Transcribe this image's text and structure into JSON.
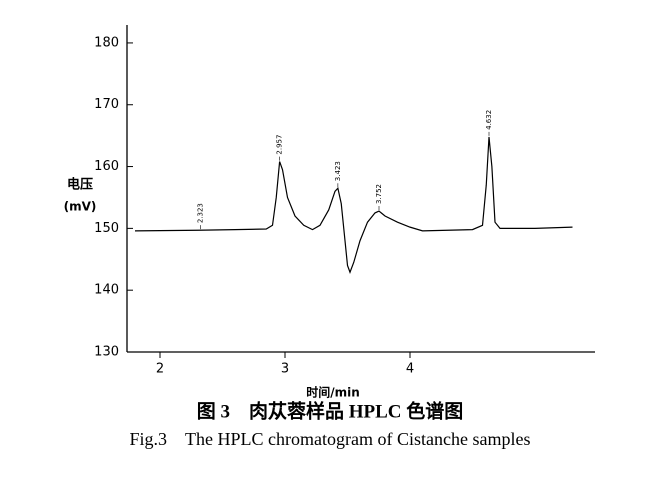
{
  "chart_data": {
    "type": "line",
    "ylabel": [
      "电压",
      "(mV)"
    ],
    "xlabel": "时间/min",
    "caption": "图 3　肉苁蓉样品 HPLC 色谱图",
    "caption_en": "Fig.3　The HPLC chromatogram of Cistanche samples",
    "x": [
      1.8,
      2.3,
      2.6,
      2.85,
      2.9,
      2.93,
      2.957,
      2.98,
      3.02,
      3.08,
      3.15,
      3.22,
      3.28,
      3.35,
      3.4,
      3.423,
      3.45,
      3.48,
      3.5,
      3.52,
      3.55,
      3.6,
      3.66,
      3.72,
      3.752,
      3.8,
      3.9,
      4.0,
      4.1,
      4.3,
      4.5,
      4.58,
      4.61,
      4.632,
      4.655,
      4.68,
      4.72,
      5.0,
      5.3
    ],
    "series": [
      {
        "color": "#000000",
        "values": [
          149.6,
          149.7,
          149.8,
          149.9,
          150.5,
          155,
          160.8,
          159.5,
          155,
          152,
          150.5,
          149.8,
          150.5,
          153,
          156,
          156.5,
          154,
          148,
          144,
          142.9,
          144.5,
          148,
          151,
          152.5,
          152.8,
          152,
          151,
          150.2,
          149.6,
          149.7,
          149.8,
          150.5,
          157,
          164.8,
          160,
          151,
          150,
          150,
          150.2
        ]
      }
    ],
    "peak_labels": [
      2.323,
      2.957,
      3.423,
      3.752,
      4.632
    ],
    "xlim": [
      1.736,
      5.48
    ],
    "ylim": [
      130,
      182.9
    ],
    "xticks": [
      2,
      3,
      4
    ],
    "yticks": [
      130,
      140,
      150,
      160,
      170,
      180
    ]
  }
}
